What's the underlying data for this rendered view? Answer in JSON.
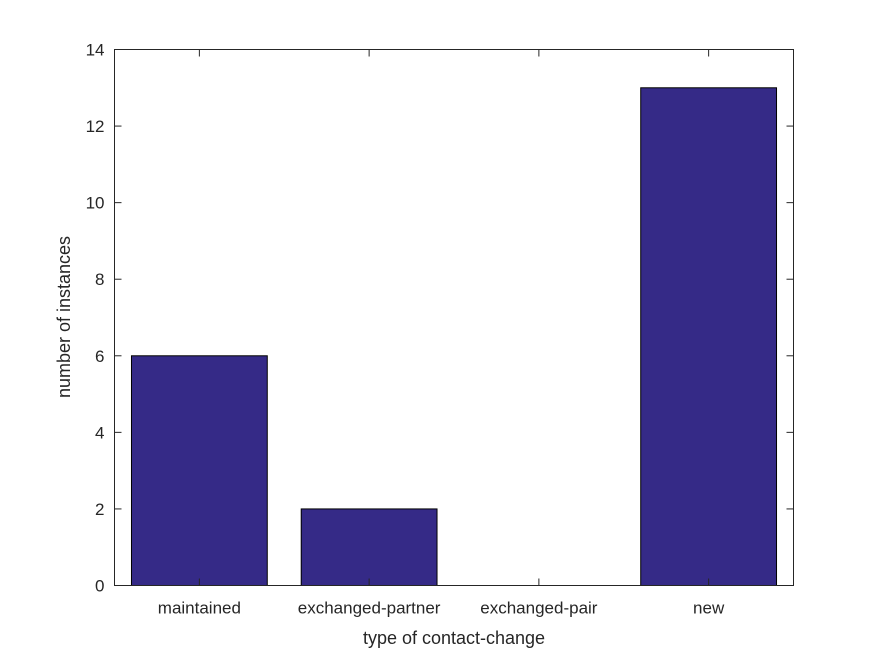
{
  "chart_data": {
    "type": "bar",
    "categories": [
      "maintained",
      "exchanged-partner",
      "exchanged-pair",
      "new"
    ],
    "values": [
      6,
      2,
      0,
      13
    ],
    "title": "",
    "xlabel": "type of contact-change",
    "ylabel": "number of instances",
    "ylim": [
      0,
      14
    ],
    "yticks": [
      0,
      2,
      4,
      6,
      8,
      10,
      12,
      14
    ],
    "grid": false,
    "bar_color": "#352a87",
    "edge_color": "#000000"
  }
}
